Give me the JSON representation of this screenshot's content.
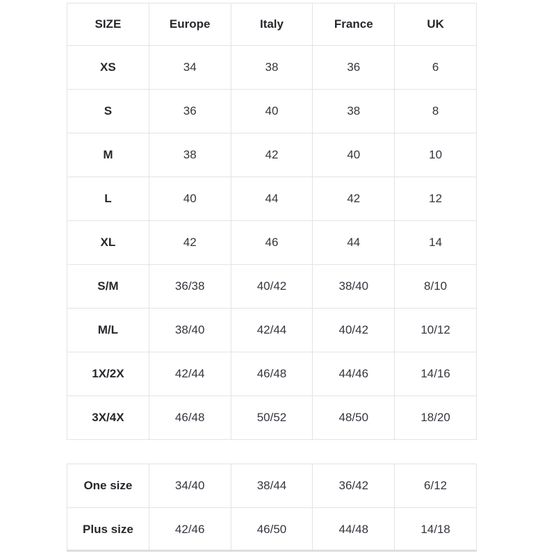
{
  "chart_data": [
    {
      "type": "table",
      "name": "size-conversion",
      "columns": [
        "SIZE",
        "Europe",
        "Italy",
        "France",
        "UK"
      ],
      "rows": [
        [
          "XS",
          "34",
          "38",
          "36",
          "6"
        ],
        [
          "S",
          "36",
          "40",
          "38",
          "8"
        ],
        [
          "M",
          "38",
          "42",
          "40",
          "10"
        ],
        [
          "L",
          "40",
          "44",
          "42",
          "12"
        ],
        [
          "XL",
          "42",
          "46",
          "44",
          "14"
        ],
        [
          "S/M",
          "36/38",
          "40/42",
          "38/40",
          "8/10"
        ],
        [
          "M/L",
          "38/40",
          "42/44",
          "40/42",
          "10/12"
        ],
        [
          "1X/2X",
          "42/44",
          "46/48",
          "44/46",
          "14/16"
        ],
        [
          "3X/4X",
          "46/48",
          "50/52",
          "48/50",
          "18/20"
        ]
      ]
    },
    {
      "type": "table",
      "name": "special-sizes",
      "columns": [],
      "rows": [
        [
          "One size",
          "34/40",
          "38/44",
          "36/42",
          "6/12"
        ],
        [
          "Plus size",
          "42/46",
          "46/50",
          "44/48",
          "14/18"
        ]
      ]
    }
  ],
  "colors": {
    "background": "#ffffff",
    "border": "#e1e3e5",
    "text": "#33363c",
    "header_text": "#26282c"
  }
}
